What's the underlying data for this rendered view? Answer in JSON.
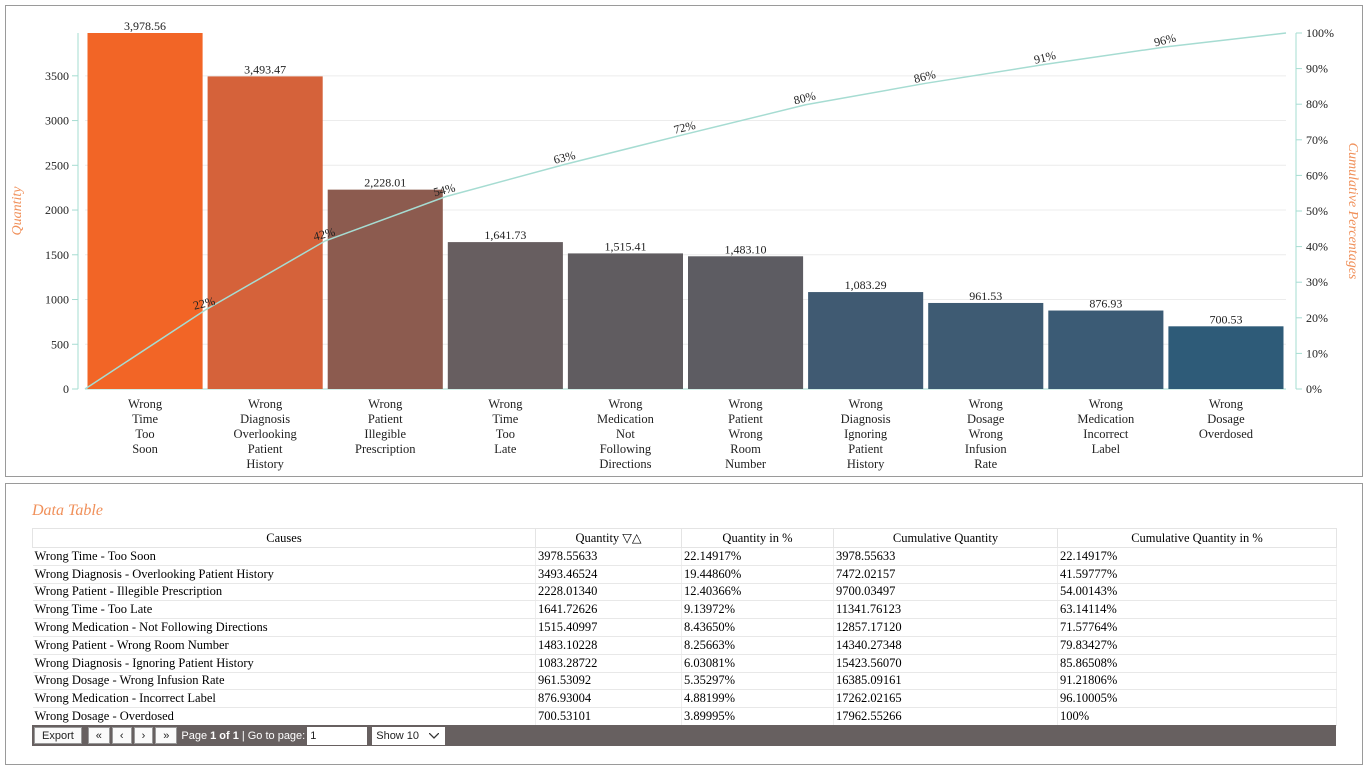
{
  "chart_data": {
    "type": "bar",
    "categories": [
      "Wrong Time Too Soon",
      "Wrong Diagnosis Overlooking Patient History",
      "Wrong Patient Illegible Prescription",
      "Wrong Time Too Late",
      "Wrong Medication Not Following Directions",
      "Wrong Patient Wrong Room Number",
      "Wrong Diagnosis Ignoring Patient History",
      "Wrong Dosage Wrong Infusion Rate",
      "Wrong Medication Incorrect Label",
      "Wrong Dosage Overdosed"
    ],
    "series": [
      {
        "type": "bar",
        "values": [
          3978.56,
          3493.47,
          2228.01,
          1641.73,
          1515.41,
          1483.1,
          1083.29,
          961.53,
          876.93,
          700.53
        ],
        "value_labels": [
          "3,978.56",
          "3,493.47",
          "2,228.01",
          "1,641.73",
          "1,515.41",
          "1,483.10",
          "1,083.29",
          "961.53",
          "876.93",
          "700.53"
        ],
        "colors": [
          "#f26526",
          "#d5623a",
          "#8c5b4f",
          "#675e60",
          "#605c60",
          "#5d5c62",
          "#405a72",
          "#3e5b73",
          "#3b5b75",
          "#2e5b78"
        ]
      },
      {
        "type": "line",
        "axis": "y2",
        "color": "#a6dcd2",
        "values": [
          22.14917,
          41.59777,
          54.00143,
          63.14114,
          71.57764,
          79.83427,
          85.86508,
          91.21806,
          96.10005,
          100
        ],
        "value_labels": [
          "22%",
          "42%",
          "54%",
          "63%",
          "72%",
          "80%",
          "86%",
          "91%",
          "96%",
          null
        ]
      }
    ],
    "ylabel": "Quantity",
    "y2label": "Cumulative Percentages",
    "ylim": [
      0,
      3978.56
    ],
    "yticks": [
      0,
      500,
      1000,
      1500,
      2000,
      2500,
      3000,
      3500
    ],
    "y2lim": [
      0,
      100
    ],
    "y2ticks": [
      {
        "value": 0,
        "label": "0%"
      },
      {
        "value": 10,
        "label": "10%"
      },
      {
        "value": 20,
        "label": "20%"
      },
      {
        "value": 30,
        "label": "30%"
      },
      {
        "value": 40,
        "label": "40%"
      },
      {
        "value": 50,
        "label": "50%"
      },
      {
        "value": 60,
        "label": "60%"
      },
      {
        "value": 70,
        "label": "70%"
      },
      {
        "value": 80,
        "label": "80%"
      },
      {
        "value": 90,
        "label": "90%"
      },
      {
        "value": 100,
        "label": "100%"
      }
    ],
    "grid": true,
    "axis_color": "#a6dcd2",
    "title_color": "#f0905a"
  },
  "table": {
    "title": "Data Table",
    "header": [
      "Causes",
      "Quantity ▽△",
      "Quantity in %",
      "Cumulative Quantity",
      "Cumulative Quantity in %"
    ],
    "rows": [
      [
        "Wrong Time - Too Soon",
        "3978.55633",
        "22.14917%",
        "3978.55633",
        "22.14917%"
      ],
      [
        "Wrong Diagnosis - Overlooking Patient History",
        "3493.46524",
        "19.44860%",
        "7472.02157",
        "41.59777%"
      ],
      [
        "Wrong Patient - Illegible Prescription",
        "2228.01340",
        "12.40366%",
        "9700.03497",
        "54.00143%"
      ],
      [
        "Wrong Time - Too Late",
        "1641.72626",
        "9.13972%",
        "11341.76123",
        "63.14114%"
      ],
      [
        "Wrong Medication - Not Following Directions",
        "1515.40997",
        "8.43650%",
        "12857.17120",
        "71.57764%"
      ],
      [
        "Wrong Patient - Wrong Room Number",
        "1483.10228",
        "8.25663%",
        "14340.27348",
        "79.83427%"
      ],
      [
        "Wrong Diagnosis - Ignoring Patient History",
        "1083.28722",
        "6.03081%",
        "15423.56070",
        "85.86508%"
      ],
      [
        "Wrong Dosage - Wrong Infusion Rate",
        "961.53092",
        "5.35297%",
        "16385.09161",
        "91.21806%"
      ],
      [
        "Wrong Medication - Incorrect Label",
        "876.93004",
        "4.88199%",
        "17262.02165",
        "96.10005%"
      ],
      [
        "Wrong Dosage - Overdosed",
        "700.53101",
        "3.89995%",
        "17962.55266",
        "100%"
      ]
    ]
  },
  "footer": {
    "export": "Export",
    "nav": [
      "«",
      "‹",
      "›",
      "»"
    ],
    "page_label": "Page",
    "page_value": "1 of 1",
    "goto_label": "| Go to page:",
    "page_input": "1",
    "show": "Show 10"
  }
}
